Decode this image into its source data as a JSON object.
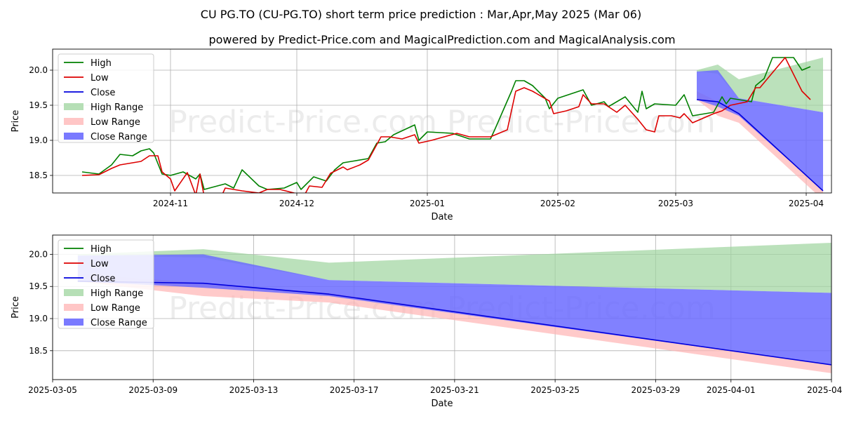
{
  "header": {
    "title": "CU PG.TO (CU-PG.TO) short term price prediction : Mar,Apr,May 2025 (Mar 06)",
    "subtitle": "powered by Predict-Price.com and MagicalPrediction.com and MagicalAnalysis.com"
  },
  "watermark": "Predict-Price.com",
  "colors": {
    "high": "#008000",
    "low": "#dd0000",
    "close": "#0000dd",
    "high_range": "#9ed49e",
    "low_range": "#ffb3b3",
    "close_range": "#6b6bff"
  },
  "chart_data": [
    {
      "type": "line",
      "xlabel": "Date",
      "ylabel": "Price",
      "ylim": [
        18.25,
        20.3
      ],
      "xlim": [
        "2024-10-04",
        "2025-04-07"
      ],
      "x_ticks": [
        "2024-11",
        "2024-12",
        "2025-01",
        "2025-02",
        "2025-03",
        "2025-04"
      ],
      "y_ticks": [
        18.5,
        19.0,
        19.5,
        20.0
      ],
      "grid": true,
      "legend": "top-left",
      "legend_entries": [
        "High",
        "Low",
        "Close",
        "High Range",
        "Low Range",
        "Close Range"
      ],
      "series": [
        {
          "name": "High",
          "points": [
            [
              "2024-10-11",
              18.55
            ],
            [
              "2024-10-15",
              18.52
            ],
            [
              "2024-10-18",
              18.65
            ],
            [
              "2024-10-20",
              18.8
            ],
            [
              "2024-10-23",
              18.78
            ],
            [
              "2024-10-25",
              18.85
            ],
            [
              "2024-10-27",
              18.88
            ],
            [
              "2024-10-28",
              18.82
            ],
            [
              "2024-10-30",
              18.52
            ],
            [
              "2024-11-01",
              18.5
            ],
            [
              "2024-11-04",
              18.55
            ],
            [
              "2024-11-07",
              18.45
            ],
            [
              "2024-11-08",
              18.52
            ],
            [
              "2024-11-09",
              18.3
            ],
            [
              "2024-11-14",
              18.38
            ],
            [
              "2024-11-16",
              18.32
            ],
            [
              "2024-11-18",
              18.58
            ],
            [
              "2024-11-22",
              18.35
            ],
            [
              "2024-11-24",
              18.3
            ],
            [
              "2024-11-28",
              18.32
            ],
            [
              "2024-12-01",
              18.4
            ],
            [
              "2024-12-02",
              18.3
            ],
            [
              "2024-12-05",
              18.48
            ],
            [
              "2024-12-08",
              18.42
            ],
            [
              "2024-12-10",
              18.58
            ],
            [
              "2024-12-12",
              18.68
            ],
            [
              "2024-12-14",
              18.7
            ],
            [
              "2024-12-18",
              18.74
            ],
            [
              "2024-12-20",
              18.96
            ],
            [
              "2024-12-22",
              18.98
            ],
            [
              "2024-12-24",
              19.08
            ],
            [
              "2024-12-29",
              19.22
            ],
            [
              "2024-12-30",
              19.0
            ],
            [
              "2025-01-01",
              19.12
            ],
            [
              "2025-01-07",
              19.1
            ],
            [
              "2025-01-11",
              19.02
            ],
            [
              "2025-01-16",
              19.02
            ],
            [
              "2025-01-17",
              19.15
            ],
            [
              "2025-01-21",
              19.7
            ],
            [
              "2025-01-22",
              19.85
            ],
            [
              "2025-01-24",
              19.85
            ],
            [
              "2025-01-26",
              19.78
            ],
            [
              "2025-01-29",
              19.6
            ],
            [
              "2025-01-30",
              19.45
            ],
            [
              "2025-02-01",
              19.6
            ],
            [
              "2025-02-05",
              19.68
            ],
            [
              "2025-02-07",
              19.72
            ],
            [
              "2025-02-09",
              19.5
            ],
            [
              "2025-02-12",
              19.55
            ],
            [
              "2025-02-13",
              19.48
            ],
            [
              "2025-02-17",
              19.62
            ],
            [
              "2025-02-20",
              19.4
            ],
            [
              "2025-02-21",
              19.7
            ],
            [
              "2025-02-22",
              19.45
            ],
            [
              "2025-02-24",
              19.52
            ],
            [
              "2025-03-01",
              19.5
            ],
            [
              "2025-03-03",
              19.65
            ],
            [
              "2025-03-05",
              19.35
            ],
            [
              "2025-03-10",
              19.4
            ],
            [
              "2025-03-12",
              19.62
            ],
            [
              "2025-03-13",
              19.52
            ],
            [
              "2025-03-14",
              19.6
            ],
            [
              "2025-03-19",
              19.55
            ],
            [
              "2025-03-20",
              19.78
            ],
            [
              "2025-03-22",
              19.88
            ],
            [
              "2025-03-24",
              20.18
            ],
            [
              "2025-03-29",
              20.18
            ],
            [
              "2025-03-31",
              20.0
            ],
            [
              "2025-04-02",
              20.05
            ]
          ]
        },
        {
          "name": "Low",
          "points": [
            [
              "2024-10-11",
              18.5
            ],
            [
              "2024-10-15",
              18.51
            ],
            [
              "2024-10-18",
              18.6
            ],
            [
              "2024-10-20",
              18.65
            ],
            [
              "2024-10-23",
              18.68
            ],
            [
              "2024-10-25",
              18.7
            ],
            [
              "2024-10-27",
              18.78
            ],
            [
              "2024-10-29",
              18.78
            ],
            [
              "2024-10-30",
              18.55
            ],
            [
              "2024-11-01",
              18.45
            ],
            [
              "2024-11-02",
              18.28
            ],
            [
              "2024-11-05",
              18.54
            ],
            [
              "2024-11-07",
              18.22
            ],
            [
              "2024-11-08",
              18.52
            ],
            [
              "2024-11-09",
              18.2
            ],
            [
              "2024-11-13",
              18.19
            ],
            [
              "2024-11-14",
              18.32
            ],
            [
              "2024-11-16",
              18.3
            ],
            [
              "2024-11-18",
              18.28
            ],
            [
              "2024-11-22",
              18.25
            ],
            [
              "2024-11-24",
              18.3
            ],
            [
              "2024-11-27",
              18.3
            ],
            [
              "2024-12-01",
              18.24
            ],
            [
              "2024-12-03",
              18.24
            ],
            [
              "2024-12-04",
              18.35
            ],
            [
              "2024-12-07",
              18.33
            ],
            [
              "2024-12-09",
              18.53
            ],
            [
              "2024-12-12",
              18.62
            ],
            [
              "2024-12-13",
              18.58
            ],
            [
              "2024-12-16",
              18.65
            ],
            [
              "2024-12-18",
              18.72
            ],
            [
              "2024-12-21",
              19.05
            ],
            [
              "2024-12-23",
              19.05
            ],
            [
              "2024-12-26",
              19.02
            ],
            [
              "2024-12-29",
              19.08
            ],
            [
              "2024-12-30",
              18.96
            ],
            [
              "2025-01-02",
              19.0
            ],
            [
              "2025-01-05",
              19.05
            ],
            [
              "2025-01-08",
              19.1
            ],
            [
              "2025-01-11",
              19.05
            ],
            [
              "2025-01-16",
              19.05
            ],
            [
              "2025-01-20",
              19.15
            ],
            [
              "2025-01-22",
              19.7
            ],
            [
              "2025-01-24",
              19.75
            ],
            [
              "2025-01-26",
              19.7
            ],
            [
              "2025-01-30",
              19.56
            ],
            [
              "2025-01-31",
              19.38
            ],
            [
              "2025-02-03",
              19.42
            ],
            [
              "2025-02-06",
              19.48
            ],
            [
              "2025-02-07",
              19.65
            ],
            [
              "2025-02-09",
              19.52
            ],
            [
              "2025-02-12",
              19.52
            ],
            [
              "2025-02-15",
              19.4
            ],
            [
              "2025-02-17",
              19.5
            ],
            [
              "2025-02-20",
              19.3
            ],
            [
              "2025-02-22",
              19.15
            ],
            [
              "2025-02-24",
              19.12
            ],
            [
              "2025-02-25",
              19.35
            ],
            [
              "2025-02-28",
              19.35
            ],
            [
              "2025-03-02",
              19.32
            ],
            [
              "2025-03-03",
              19.38
            ],
            [
              "2025-03-05",
              19.25
            ],
            [
              "2025-03-10",
              19.38
            ],
            [
              "2025-03-12",
              19.42
            ],
            [
              "2025-03-14",
              19.5
            ],
            [
              "2025-03-18",
              19.55
            ],
            [
              "2025-03-20",
              19.75
            ],
            [
              "2025-03-21",
              19.75
            ],
            [
              "2025-03-27",
              20.18
            ],
            [
              "2025-03-31",
              19.7
            ],
            [
              "2025-04-02",
              19.58
            ]
          ]
        },
        {
          "name": "Close",
          "points": [
            [
              "2025-03-06",
              19.58
            ],
            [
              "2025-03-11",
              19.55
            ],
            [
              "2025-03-16",
              19.38
            ],
            [
              "2025-04-05",
              18.28
            ]
          ]
        }
      ],
      "ranges": [
        {
          "name": "High Range",
          "upper": [
            [
              "2025-03-06",
              20.0
            ],
            [
              "2025-03-11",
              20.08
            ],
            [
              "2025-03-16",
              19.87
            ],
            [
              "2025-04-05",
              20.18
            ]
          ],
          "lower": [
            [
              "2025-03-06",
              19.98
            ],
            [
              "2025-03-11",
              19.95
            ],
            [
              "2025-03-16",
              19.6
            ],
            [
              "2025-04-05",
              19.4
            ]
          ]
        },
        {
          "name": "Low Range",
          "upper": [
            [
              "2025-03-06",
              19.7
            ],
            [
              "2025-03-11",
              19.55
            ],
            [
              "2025-03-16",
              19.4
            ],
            [
              "2025-04-05",
              18.28
            ]
          ],
          "lower": [
            [
              "2025-03-06",
              19.58
            ],
            [
              "2025-03-11",
              19.35
            ],
            [
              "2025-03-16",
              19.25
            ],
            [
              "2025-04-05",
              18.15
            ]
          ]
        },
        {
          "name": "Close Range",
          "upper": [
            [
              "2025-03-06",
              19.98
            ],
            [
              "2025-03-11",
              20.0
            ],
            [
              "2025-03-16",
              19.6
            ],
            [
              "2025-04-05",
              19.4
            ]
          ],
          "lower": [
            [
              "2025-03-06",
              19.58
            ],
            [
              "2025-03-11",
              19.48
            ],
            [
              "2025-03-16",
              19.35
            ],
            [
              "2025-04-05",
              18.28
            ]
          ]
        }
      ]
    },
    {
      "type": "line",
      "xlabel": "Date",
      "ylabel": "Price",
      "ylim": [
        18.05,
        20.3
      ],
      "xlim": [
        "2025-03-05",
        "2025-04-05"
      ],
      "x_ticks": [
        "2025-03-05",
        "2025-03-09",
        "2025-03-13",
        "2025-03-17",
        "2025-03-21",
        "2025-03-25",
        "2025-03-29",
        "2025-04-01",
        "2025-04-05"
      ],
      "y_ticks": [
        18.5,
        19.0,
        19.5,
        20.0
      ],
      "grid": true,
      "legend": "top-left",
      "legend_entries": [
        "High",
        "Low",
        "Close",
        "High Range",
        "Low Range",
        "Close Range"
      ],
      "series": [
        {
          "name": "Close",
          "points": [
            [
              "2025-03-06",
              19.58
            ],
            [
              "2025-03-11",
              19.55
            ],
            [
              "2025-03-16",
              19.38
            ],
            [
              "2025-04-05",
              18.28
            ]
          ]
        }
      ],
      "ranges": [
        {
          "name": "High Range",
          "upper": [
            [
              "2025-03-06",
              20.0
            ],
            [
              "2025-03-11",
              20.08
            ],
            [
              "2025-03-16",
              19.87
            ],
            [
              "2025-04-05",
              20.18
            ]
          ],
          "lower": [
            [
              "2025-03-06",
              19.98
            ],
            [
              "2025-03-11",
              19.95
            ],
            [
              "2025-03-16",
              19.6
            ],
            [
              "2025-04-05",
              19.4
            ]
          ]
        },
        {
          "name": "Low Range",
          "upper": [
            [
              "2025-03-06",
              19.7
            ],
            [
              "2025-03-11",
              19.55
            ],
            [
              "2025-03-16",
              19.4
            ],
            [
              "2025-04-05",
              18.28
            ]
          ],
          "lower": [
            [
              "2025-03-06",
              19.58
            ],
            [
              "2025-03-11",
              19.35
            ],
            [
              "2025-03-16",
              19.25
            ],
            [
              "2025-04-05",
              18.15
            ]
          ]
        },
        {
          "name": "Close Range",
          "upper": [
            [
              "2025-03-06",
              19.98
            ],
            [
              "2025-03-11",
              20.0
            ],
            [
              "2025-03-16",
              19.6
            ],
            [
              "2025-04-05",
              19.4
            ]
          ],
          "lower": [
            [
              "2025-03-06",
              19.58
            ],
            [
              "2025-03-11",
              19.48
            ],
            [
              "2025-03-16",
              19.35
            ],
            [
              "2025-04-05",
              18.28
            ]
          ]
        }
      ]
    }
  ]
}
